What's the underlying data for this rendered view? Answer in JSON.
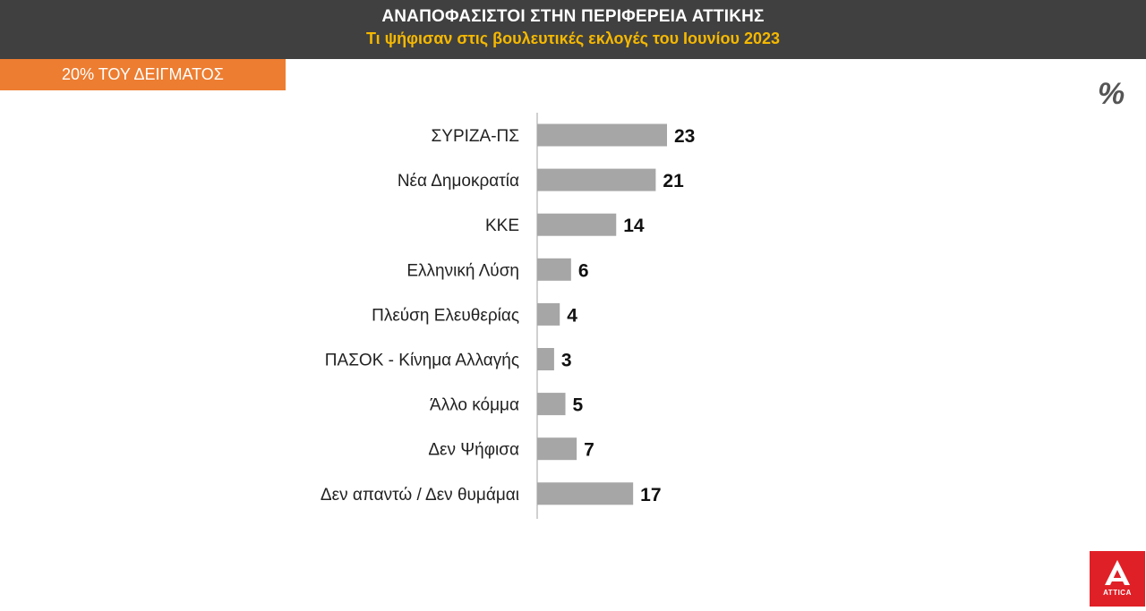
{
  "header": {
    "title": "ΑΝΑΠΟΦΑΣΙΣΤΟΙ ΣΤΗΝ ΠΕΡΙΦΕΡΕΙΑ ΑΤΤΙΚΗΣ",
    "subtitle": "Τι ψήφισαν στις βουλευτικές εκλογές του Ιουνίου 2023"
  },
  "sample_label": "20% ΤΟΥ ΔΕΙΓΜΑΤΟΣ",
  "unit_label": "%",
  "logo": {
    "text": "ATTICA"
  },
  "colors": {
    "header_bg": "#404040",
    "subtitle": "#f5b800",
    "badge_bg": "#ed7d31",
    "bar": "#a6a6a6",
    "logo_bg": "#e02027"
  },
  "chart_data": {
    "type": "bar",
    "orientation": "horizontal",
    "categories": [
      "ΣΥΡΙΖΑ-ΠΣ",
      "Νέα Δημοκρατία",
      "ΚΚΕ",
      "Ελληνική Λύση",
      "Πλεύση Ελευθερίας",
      "ΠΑΣΟΚ - Κίνημα Αλλαγής",
      "Άλλο κόμμα",
      "Δεν Ψήφισα",
      "Δεν απαντώ / Δεν θυμάμαι"
    ],
    "values": [
      23,
      21,
      14,
      6,
      4,
      3,
      5,
      7,
      17
    ],
    "xlim": [
      0,
      23
    ],
    "grid": false,
    "legend": false
  }
}
